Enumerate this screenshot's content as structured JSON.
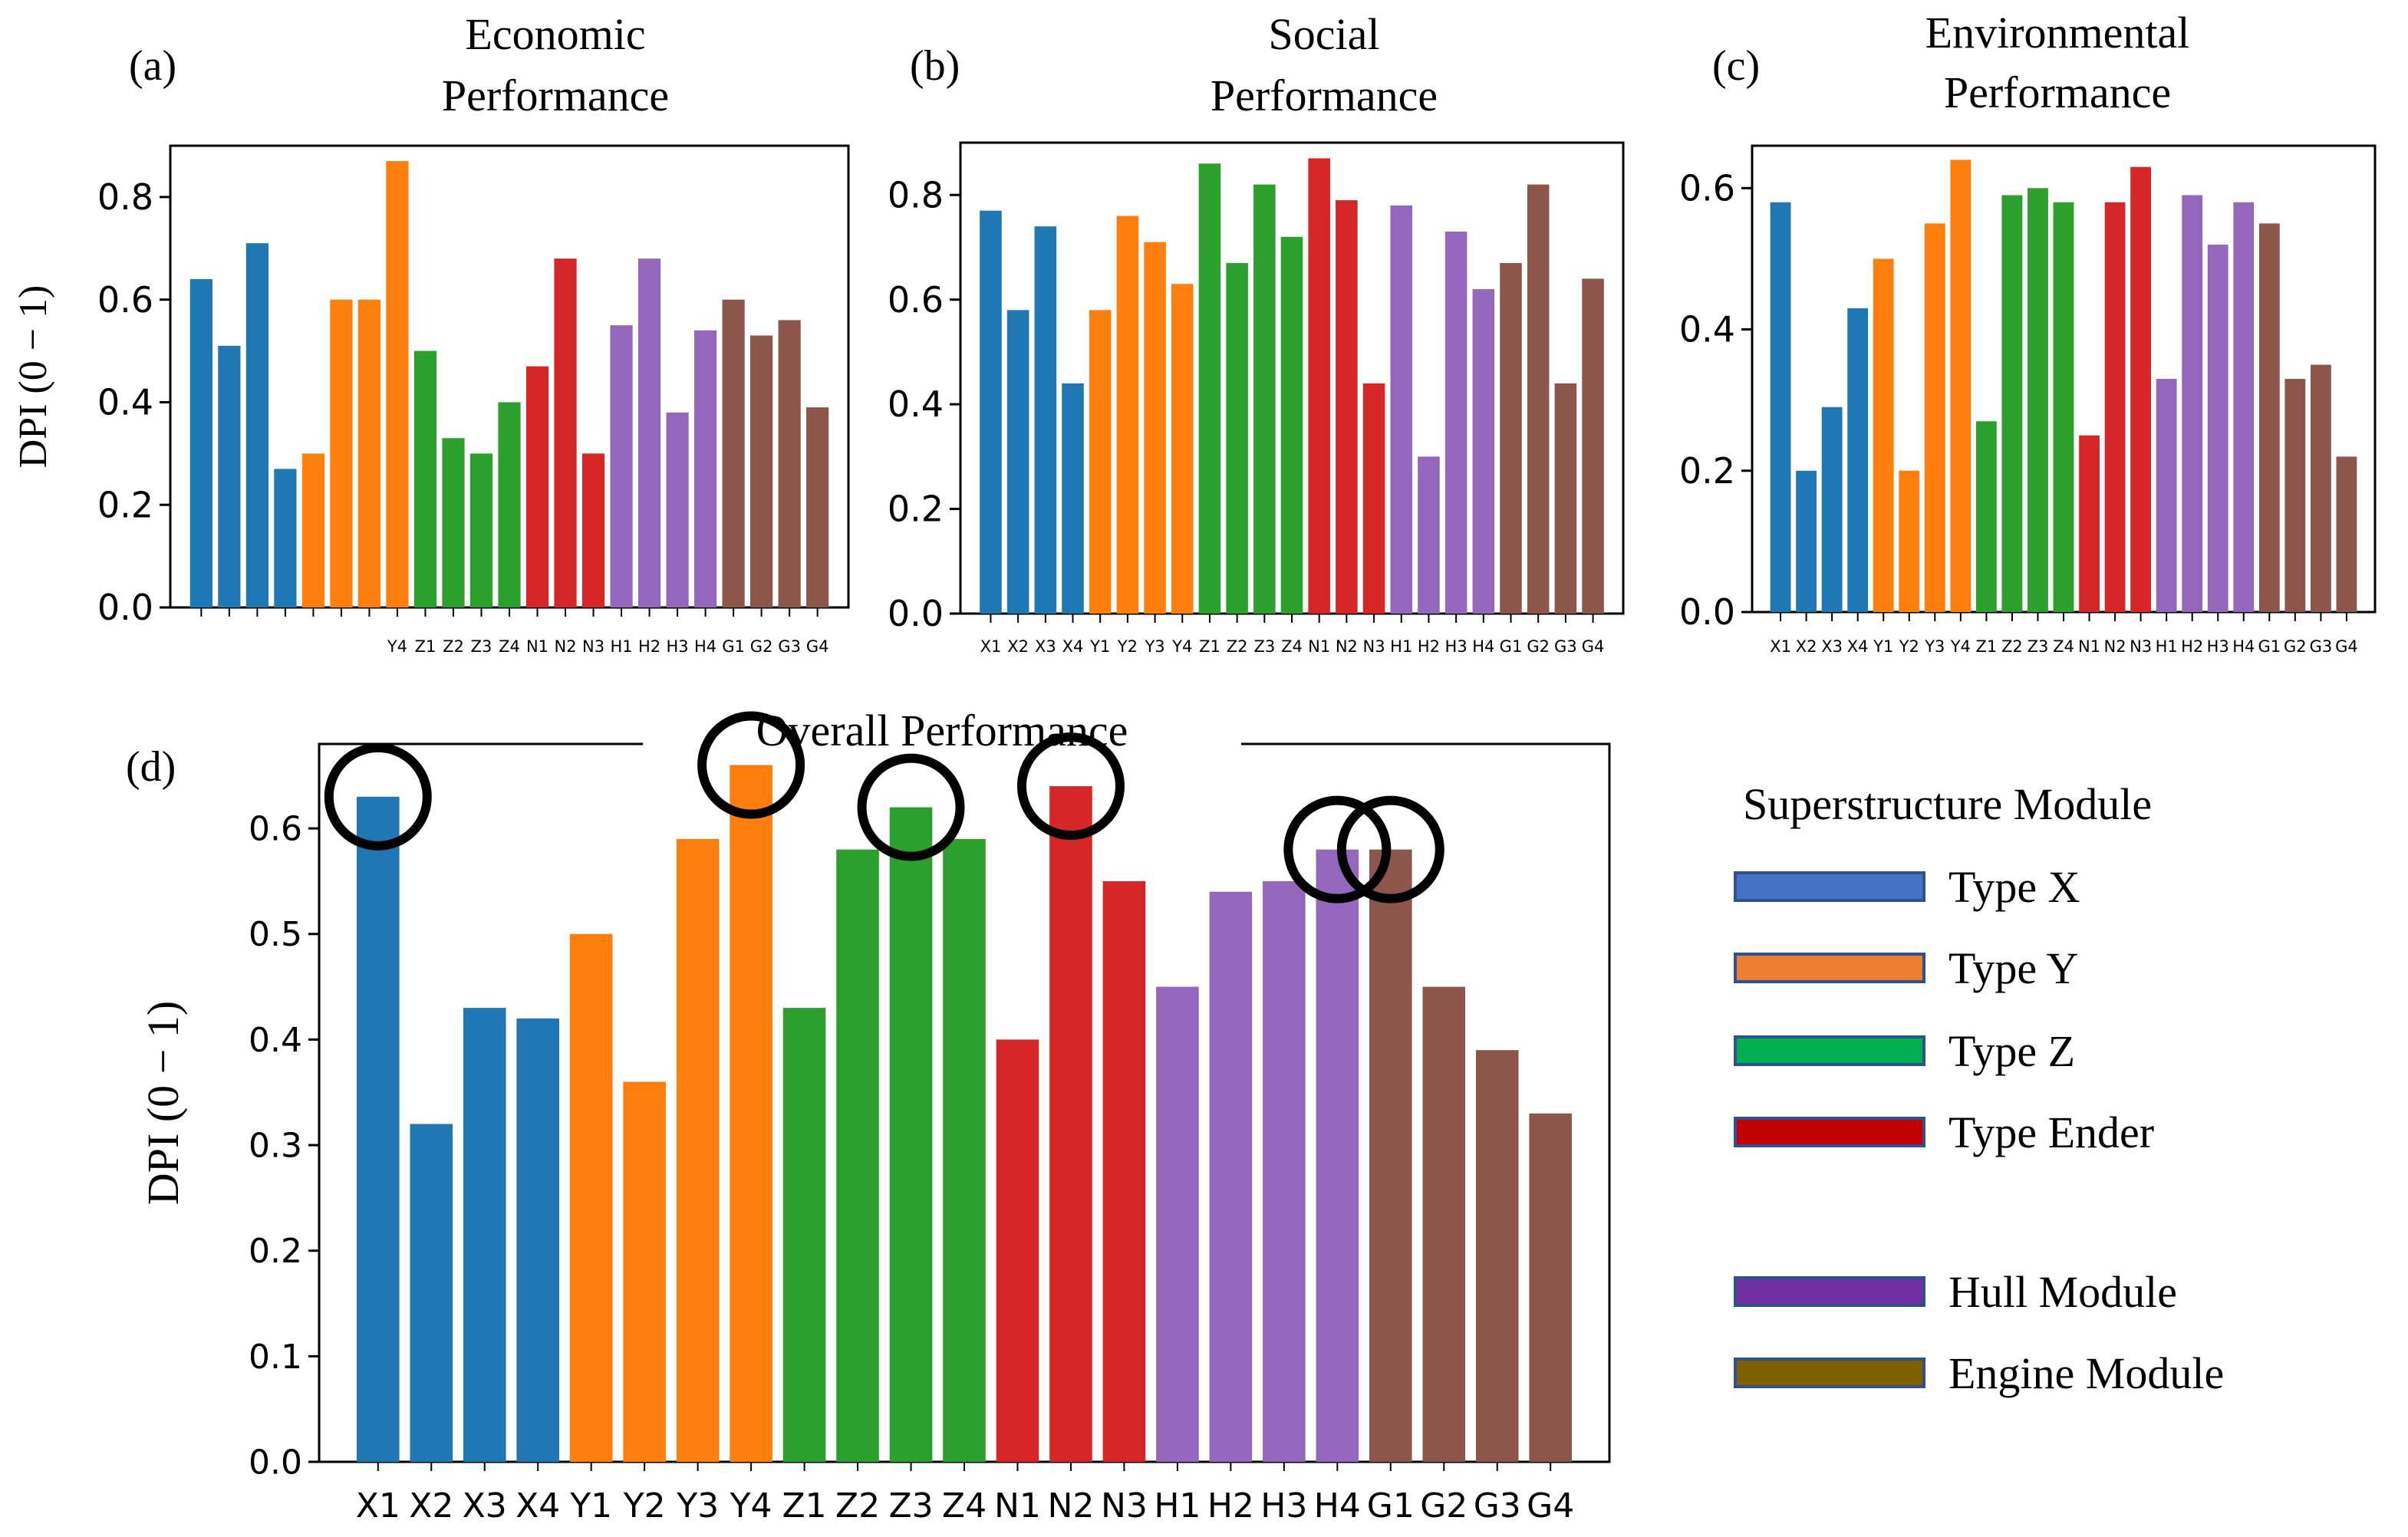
{
  "categories": [
    "X1",
    "X2",
    "X3",
    "X4",
    "Y1",
    "Y2",
    "Y3",
    "Y4",
    "Z1",
    "Z2",
    "Z3",
    "Z4",
    "N1",
    "N2",
    "N3",
    "H1",
    "H2",
    "H3",
    "H4",
    "G1",
    "G2",
    "G3",
    "G4"
  ],
  "chart_data": [
    {
      "id": "a",
      "type": "bar",
      "panel_label": "(a)",
      "title_lines": [
        "Economic",
        "Performance"
      ],
      "ylabel": "DPI (0 − 1)",
      "ylim": [
        0,
        0.9
      ],
      "yticks": [
        0.0,
        0.2,
        0.4,
        0.6,
        0.8
      ],
      "tick_labels": [
        "0.0",
        "0.2",
        "0.4",
        "0.6",
        "0.8"
      ],
      "values": [
        0.64,
        0.51,
        0.71,
        0.27,
        0.3,
        0.6,
        0.6,
        0.87,
        0.5,
        0.33,
        0.3,
        0.4,
        0.47,
        0.68,
        0.3,
        0.55,
        0.68,
        0.38,
        0.54,
        0.6,
        0.53,
        0.56,
        0.39
      ]
    },
    {
      "id": "b",
      "type": "bar",
      "panel_label": "(b)",
      "title_lines": [
        "Social",
        "Performance"
      ],
      "ylabel": "",
      "ylim": [
        0,
        0.9
      ],
      "yticks": [
        0.0,
        0.2,
        0.4,
        0.6,
        0.8
      ],
      "tick_labels": [
        "0.0",
        "0.2",
        "0.4",
        "0.6",
        "0.8"
      ],
      "values": [
        0.77,
        0.58,
        0.74,
        0.44,
        0.58,
        0.76,
        0.71,
        0.63,
        0.86,
        0.67,
        0.82,
        0.72,
        0.87,
        0.79,
        0.44,
        0.78,
        0.3,
        0.73,
        0.62,
        0.67,
        0.82,
        0.44,
        0.64
      ]
    },
    {
      "id": "c",
      "type": "bar",
      "panel_label": "(c)",
      "title_lines": [
        "Environmental",
        "Performance"
      ],
      "ylabel": "",
      "ylim": [
        0,
        0.66
      ],
      "yticks": [
        0.0,
        0.2,
        0.4,
        0.6
      ],
      "tick_labels": [
        "0.0",
        "0.2",
        "0.4",
        "0.6"
      ],
      "values": [
        0.58,
        0.2,
        0.29,
        0.43,
        0.5,
        0.2,
        0.55,
        0.64,
        0.27,
        0.59,
        0.6,
        0.58,
        0.25,
        0.58,
        0.63,
        0.33,
        0.59,
        0.52,
        0.58,
        0.55,
        0.33,
        0.35,
        0.22
      ]
    },
    {
      "id": "d",
      "type": "bar",
      "panel_label": "(d)",
      "title": "Overall  Performance",
      "ylabel": "DPI (0 − 1)",
      "ylim": [
        0,
        0.68
      ],
      "yticks": [
        0.0,
        0.1,
        0.2,
        0.3,
        0.4,
        0.5,
        0.6
      ],
      "tick_labels": [
        "0.0",
        "0.1",
        "0.2",
        "0.3",
        "0.4",
        "0.5",
        "0.6"
      ],
      "values": [
        0.63,
        0.32,
        0.43,
        0.42,
        0.5,
        0.36,
        0.59,
        0.66,
        0.43,
        0.58,
        0.62,
        0.59,
        0.4,
        0.64,
        0.55,
        0.45,
        0.54,
        0.55,
        0.58,
        0.58,
        0.45,
        0.39,
        0.33
      ],
      "highlighted": [
        "X1",
        "Y4",
        "Z3",
        "N2",
        "H4",
        "G1"
      ]
    }
  ],
  "group_colors": {
    "X": "#1f77b4",
    "Y": "#ff7f0e",
    "Z": "#2ca02c",
    "N": "#d62728",
    "H": "#9467bd",
    "G": "#8c564b"
  },
  "legend": {
    "title": "Superstructure Module",
    "items": [
      {
        "label": "Type X",
        "color": "#4472c4"
      },
      {
        "label": "Type Y",
        "color": "#ed7d31"
      },
      {
        "label": "Type Z",
        "color": "#00b050"
      },
      {
        "label": "Type Ender",
        "color": "#c00000"
      },
      {
        "label": "Hull Module",
        "color": "#7030a0"
      },
      {
        "label": "Engine Module",
        "color": "#7f6000"
      }
    ]
  }
}
